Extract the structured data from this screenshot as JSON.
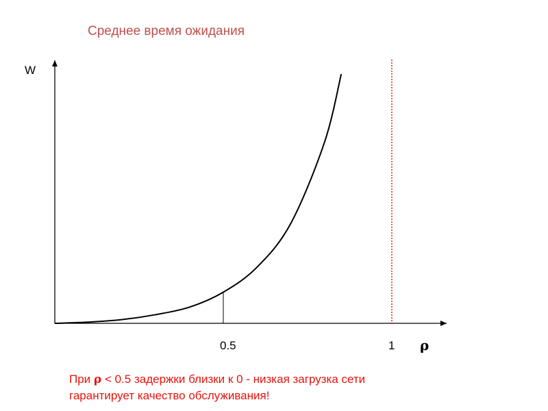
{
  "title": "Среднее время ожидания",
  "y_axis_label": "W",
  "x_axis_label": "ρ",
  "x_ticks": [
    "0.5",
    "1"
  ],
  "note": {
    "prefix": "При",
    "symbol": "ρ",
    "line1_rest": "< 0.5 задержки близки к 0 - низкая загрузка сети",
    "line2": "гарантирует качество обслуживания!"
  },
  "colors": {
    "title": "#c0504d",
    "note": "#e8120c",
    "asymptote": "#c00000",
    "curve": "#000000"
  },
  "chart_data": {
    "type": "line",
    "description_of_curve": "",
    "x_marks": [
      0.5,
      1
    ],
    "asymptote_x": 1,
    "series": [
      {
        "x": [
          0.0,
          0.1,
          0.2,
          0.3,
          0.4,
          0.5,
          0.6,
          0.7,
          0.8,
          0.85
        ],
        "y": [
          0.0,
          0.01,
          0.03,
          0.07,
          0.13,
          0.25,
          0.45,
          0.8,
          1.45,
          2.0
        ]
      }
    ]
  }
}
